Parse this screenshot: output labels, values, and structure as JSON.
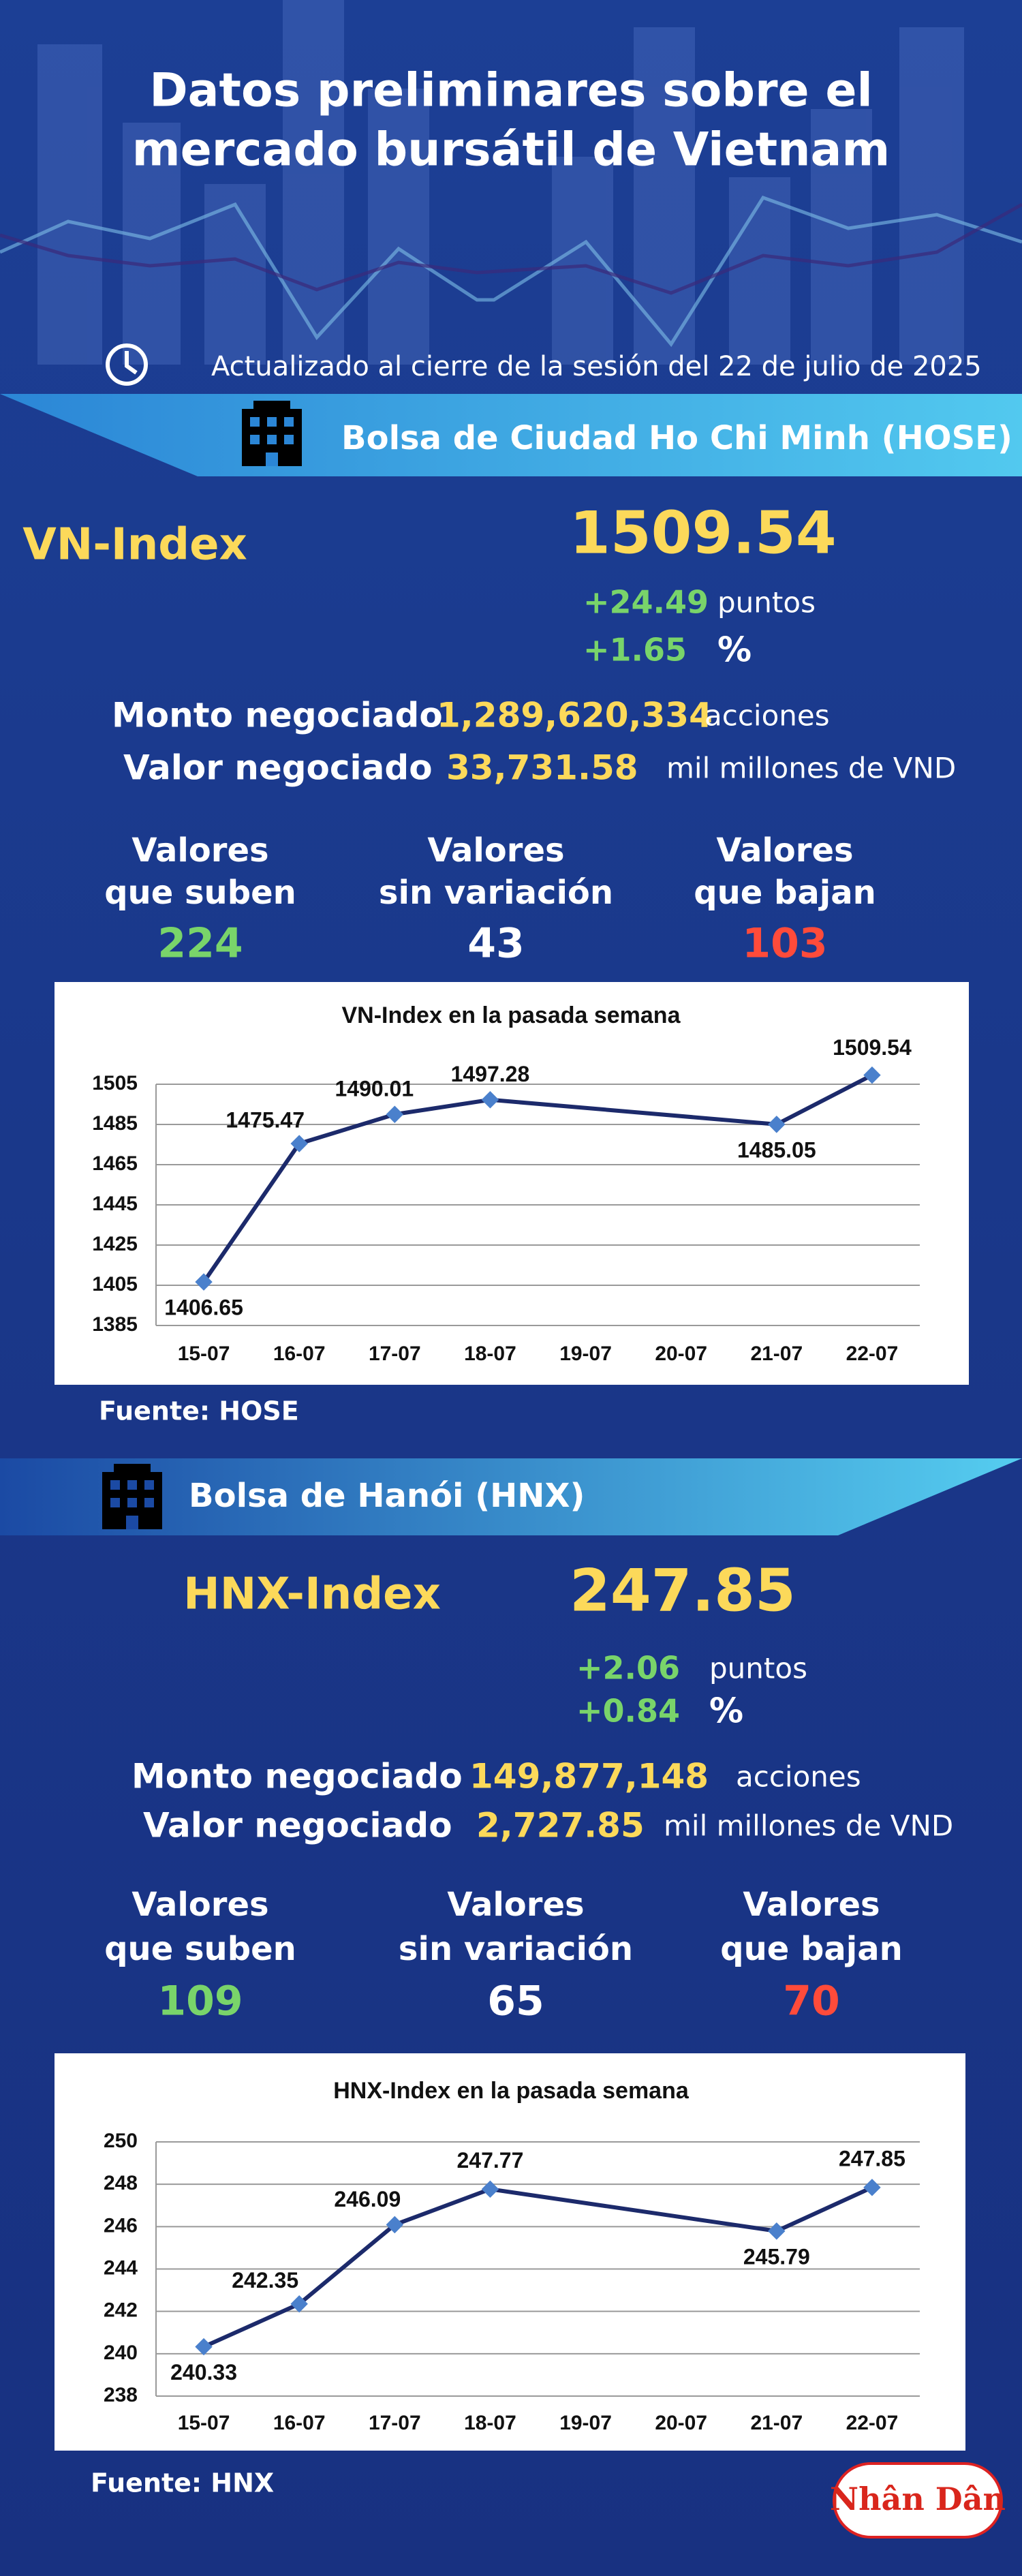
{
  "header": {
    "title": [
      "Datos preliminares sobre el",
      "mercado bursátil de Vietnam"
    ],
    "updated": "Actualizado al cierre de la sesión del 22 de julio de 2025"
  },
  "hose": {
    "exchange": "Bolsa de Ciudad Ho Chi Minh (HOSE)",
    "index_name": "VN-Index",
    "index_value": "1509.54",
    "change_points": "+24.49",
    "points_unit": "puntos",
    "change_percent": "+1.65",
    "percent_unit": "%",
    "volume_label": "Monto negociado",
    "volume": "1,289,620,334",
    "volume_unit": "acciones",
    "value_label": "Valor negociado",
    "value": "33,731.58",
    "value_unit": "mil millones de VND",
    "breadth": [
      {
        "label": [
          "Valores",
          "que suben"
        ],
        "count": "224"
      },
      {
        "label": [
          "Valores",
          "sin variación"
        ],
        "count": "43"
      },
      {
        "label": [
          "Valores",
          "que bajan"
        ],
        "count": "103"
      }
    ],
    "source": "Fuente: HOSE"
  },
  "hnx": {
    "exchange": "Bolsa de Hanói (HNX)",
    "index_name": "HNX-Index",
    "index_value": "247.85",
    "change_points": "+2.06",
    "points_unit": "puntos",
    "change_percent": "+0.84",
    "percent_unit": "%",
    "volume_label": "Monto negociado",
    "volume": "149,877,148",
    "volume_unit": "acciones",
    "value_label": "Valor negociado",
    "value": "2,727.85",
    "value_unit": "mil millones de VND",
    "breadth": [
      {
        "label": [
          "Valores",
          "que suben"
        ],
        "count": "109"
      },
      {
        "label": [
          "Valores",
          "sin variación"
        ],
        "count": "65"
      },
      {
        "label": [
          "Valores",
          "que bajan"
        ],
        "count": "70"
      }
    ],
    "source": "Fuente:  HNX"
  },
  "logo": "Nhân Dân",
  "chart_data": [
    {
      "type": "line",
      "title": "VN-Index en la pasada semana",
      "categories": [
        "15-07",
        "16-07",
        "17-07",
        "18-07",
        "19-07",
        "20-07",
        "21-07",
        "22-07"
      ],
      "x": [
        "15-07",
        "16-07",
        "17-07",
        "18-07",
        "21-07",
        "22-07"
      ],
      "series": [
        {
          "color": "#1c2a6b",
          "values": [
            1406.65,
            1475.47,
            1490.01,
            1497.28,
            1485.05,
            1509.54
          ]
        }
      ],
      "ylim": [
        1385,
        1505
      ],
      "yticks": [
        1385,
        1405,
        1425,
        1445,
        1465,
        1485,
        1505
      ],
      "grid": true
    },
    {
      "type": "line",
      "title": "HNX-Index en la pasada semana",
      "categories": [
        "15-07",
        "16-07",
        "17-07",
        "18-07",
        "19-07",
        "20-07",
        "21-07",
        "22-07"
      ],
      "x": [
        "15-07",
        "16-07",
        "17-07",
        "18-07",
        "21-07",
        "22-07"
      ],
      "series": [
        {
          "color": "#1c2a6b",
          "values": [
            240.33,
            242.35,
            246.09,
            247.77,
            245.79,
            247.85
          ]
        }
      ],
      "ylim": [
        238,
        250
      ],
      "yticks": [
        238,
        240,
        242,
        244,
        246,
        248,
        250
      ],
      "grid": true
    }
  ]
}
